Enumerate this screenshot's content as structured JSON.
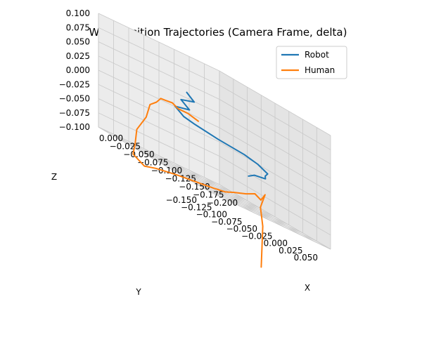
{
  "chart_data": {
    "type": "line",
    "projection": "3d",
    "title": "Wrist Position Trajectories (Camera Frame, delta)",
    "xlabel": "X",
    "ylabel": "Y",
    "zlabel": "Z",
    "xlim": [
      -0.2,
      0.0
    ],
    "ylim": [
      -0.15,
      0.05
    ],
    "zlim": [
      -0.1,
      0.1
    ],
    "xticks": [
      "−0.200",
      "−0.175",
      "−0.150",
      "−0.125",
      "−0.100",
      "−0.075",
      "−0.050",
      "−0.025",
      "0.000"
    ],
    "yticks": [
      "0.050",
      "0.025",
      "0.000",
      "−0.025",
      "−0.050",
      "−0.075",
      "−0.100",
      "−0.125",
      "−0.150"
    ],
    "zticks": [
      "0.100",
      "0.075",
      "0.050",
      "0.025",
      "0.000",
      "−0.025",
      "−0.050",
      "−0.075",
      "−0.100"
    ],
    "grid": true,
    "legend": "top-right",
    "colors": {
      "Robot": "#1f77b4",
      "Human": "#ff7f0e",
      "pane_left": "#ececec",
      "pane_right": "#e4e4e4",
      "pane_floor": "#f5f5f5",
      "grid": "#c8c8c8"
    },
    "series": [
      {
        "name": "Robot",
        "color": "#1f77b4",
        "points": [
          [
            -0.05,
            -0.05,
            0.04
          ],
          [
            -0.058,
            -0.045,
            0.03
          ],
          [
            -0.045,
            -0.055,
            0.022
          ],
          [
            -0.055,
            -0.05,
            0.012
          ],
          [
            -0.04,
            -0.06,
            0.005
          ],
          [
            -0.05,
            -0.055,
            -0.005
          ],
          [
            -0.065,
            -0.05,
            -0.008
          ],
          [
            -0.09,
            -0.035,
            -0.012
          ],
          [
            -0.11,
            -0.01,
            -0.015
          ],
          [
            -0.118,
            0.005,
            -0.02
          ],
          [
            -0.125,
            0.015,
            -0.028
          ],
          [
            -0.115,
            0.02,
            -0.035
          ],
          [
            -0.11,
            0.025,
            -0.04
          ],
          [
            -0.09,
            0.025,
            -0.045
          ],
          [
            -0.085,
            0.02,
            -0.052
          ]
        ]
      },
      {
        "name": "Human",
        "color": "#ff7f0e",
        "points": [
          [
            -0.06,
            -0.04,
            0.0
          ],
          [
            -0.05,
            -0.048,
            0.004
          ],
          [
            -0.04,
            -0.055,
            0.003
          ],
          [
            -0.035,
            -0.06,
            0.008
          ],
          [
            -0.028,
            -0.065,
            0.006
          ],
          [
            -0.025,
            -0.07,
            0.005
          ],
          [
            -0.026,
            -0.078,
            -0.005
          ],
          [
            -0.022,
            -0.085,
            -0.015
          ],
          [
            -0.026,
            -0.095,
            -0.04
          ],
          [
            -0.02,
            -0.105,
            -0.07
          ],
          [
            -0.028,
            -0.115,
            -0.095
          ],
          [
            -0.035,
            -0.125,
            -0.115
          ],
          [
            -0.05,
            -0.12,
            -0.125
          ],
          [
            -0.065,
            -0.115,
            -0.118
          ],
          [
            -0.085,
            -0.1,
            -0.11
          ],
          [
            -0.1,
            -0.085,
            -0.105
          ],
          [
            -0.115,
            -0.07,
            -0.1
          ],
          [
            -0.125,
            -0.055,
            -0.095
          ],
          [
            -0.13,
            -0.045,
            -0.088
          ],
          [
            -0.135,
            -0.03,
            -0.08
          ],
          [
            -0.14,
            -0.02,
            -0.072
          ],
          [
            -0.14,
            -0.01,
            -0.078
          ],
          [
            -0.142,
            -0.005,
            -0.065
          ],
          [
            -0.15,
            -0.02,
            -0.09
          ],
          [
            -0.165,
            -0.03,
            -0.12
          ],
          [
            -0.18,
            -0.045,
            -0.155
          ],
          [
            -0.195,
            -0.06,
            -0.19
          ]
        ]
      }
    ]
  }
}
